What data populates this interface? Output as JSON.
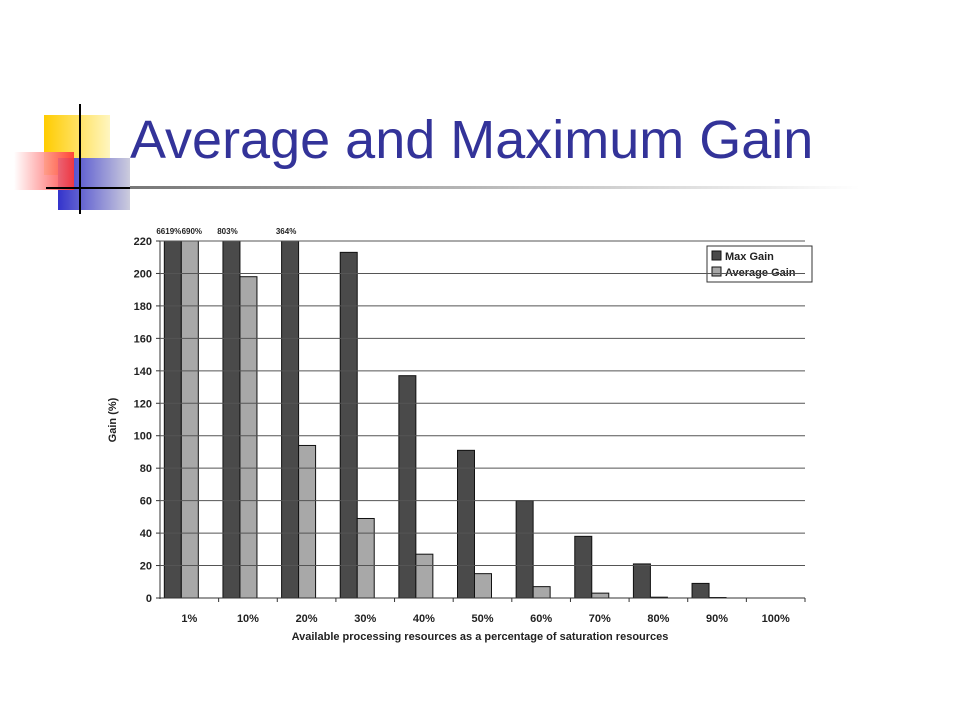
{
  "chart_data": {
    "type": "bar",
    "title": "Average and Maximum Gain",
    "xlabel": "Available processing resources as a percentage of saturation resources",
    "ylabel": "Gain (%)",
    "categories": [
      "1%",
      "10%",
      "20%",
      "30%",
      "40%",
      "50%",
      "60%",
      "70%",
      "80%",
      "90%",
      "100%"
    ],
    "series": [
      {
        "name": "Max Gain",
        "color": "#4a4a4a",
        "values": [
          6619,
          803,
          364,
          213,
          137,
          91,
          60,
          38,
          21,
          9,
          0
        ],
        "value_labels": [
          "6619%",
          "803%",
          "364%",
          null,
          null,
          null,
          null,
          null,
          null,
          null,
          null
        ]
      },
      {
        "name": "Average Gain",
        "color": "#a8a8a8",
        "values": [
          690,
          198,
          94,
          49,
          27,
          15,
          7,
          3,
          0.5,
          0.3,
          0
        ],
        "value_labels": [
          "690%",
          null,
          null,
          null,
          null,
          null,
          null,
          null,
          null,
          null,
          null
        ]
      }
    ],
    "ylim": [
      0,
      220
    ],
    "yticks": [
      0,
      20,
      40,
      60,
      80,
      100,
      120,
      140,
      160,
      180,
      200,
      220
    ],
    "grid": true,
    "legend": "upper right"
  }
}
